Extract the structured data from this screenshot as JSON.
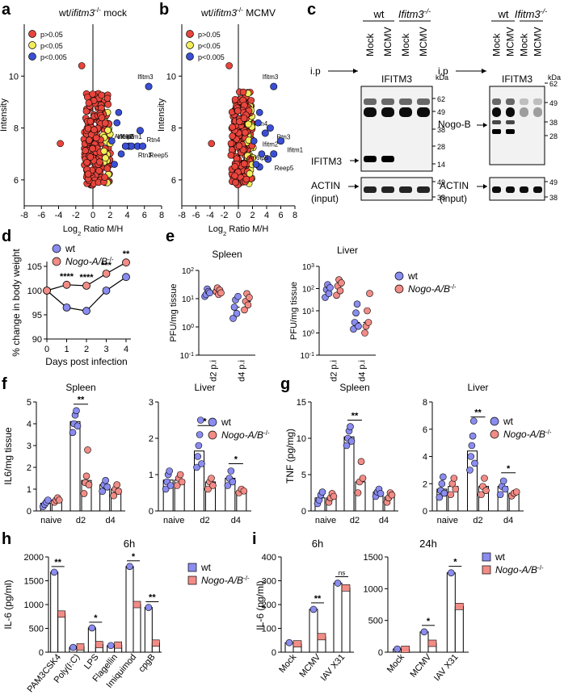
{
  "colors": {
    "red": "#e8453c",
    "yellow": "#f2ee5a",
    "blue": "#3a4fd6",
    "wt": "#8a8cf0",
    "ko": "#f28c86",
    "black": "#000000"
  },
  "panel_letters": {
    "a": "a",
    "b": "b",
    "c": "c",
    "d": "d",
    "e": "e",
    "f": "f",
    "g": "g",
    "h": "h",
    "i": "i"
  },
  "chart_data": [
    {
      "id": "a",
      "type": "scatter",
      "title": "wt/ifitm3-/- mock",
      "title_parts": {
        "pre": "wt/",
        "italic": "ifitm3",
        "sup": "-/-",
        "post": " mock"
      },
      "xlabel": "Log2 Ratio M/H",
      "xlabel_parts": {
        "pre": "Log",
        "sub": "2",
        "post": " Ratio M/H"
      },
      "ylabel": "Intensity",
      "xlim": [
        -8,
        8
      ],
      "ylim": [
        5,
        12
      ],
      "xticks": [
        -8,
        -6,
        -4,
        -2,
        0,
        2,
        4,
        6,
        8
      ],
      "yticks": [
        6,
        8,
        10
      ],
      "legend": [
        {
          "label": "p>0.05",
          "color": "red"
        },
        {
          "label": "p<0.05",
          "color": "yellow"
        },
        {
          "label": "p<0.005",
          "color": "blue"
        }
      ],
      "highlighted": [
        {
          "name": "Ifitm3",
          "x": 6.5,
          "y": 9.6
        },
        {
          "name": "Rtn4",
          "x": 5.5,
          "y": 7.9
        },
        {
          "name": "Ifitm2",
          "x": 4.2,
          "y": 7.3
        },
        {
          "name": "Rtn3",
          "x": 4.5,
          "y": 7.3
        },
        {
          "name": "Ifitm1",
          "x": 5.2,
          "y": 7.3
        },
        {
          "name": "Reep5",
          "x": 5.8,
          "y": 7.3
        },
        {
          "name": "Arl6ip5",
          "x": 3.8,
          "y": 7.3
        }
      ]
    },
    {
      "id": "b",
      "type": "scatter",
      "title": "wt/ifitm3-/- MCMV",
      "title_parts": {
        "pre": "wt/",
        "italic": "ifitm3",
        "sup": "-/-",
        "post": " MCMV"
      },
      "xlabel": "Log2 Ratio M/H",
      "xlabel_parts": {
        "pre": "Log",
        "sub": "2",
        "post": " Ratio M/H"
      },
      "ylabel": "Intensity",
      "xlim": [
        -8,
        8
      ],
      "ylim": [
        5,
        12
      ],
      "xticks": [
        -8,
        -6,
        -4,
        -2,
        0,
        2,
        4,
        6,
        8
      ],
      "yticks": [
        6,
        8,
        10
      ],
      "legend": [
        {
          "label": "p>0.05",
          "color": "red"
        },
        {
          "label": "p<0.05",
          "color": "yellow"
        },
        {
          "label": "p<0.005",
          "color": "blue"
        }
      ],
      "highlighted": [
        {
          "name": "Ifitm3",
          "x": 5.0,
          "y": 9.6
        },
        {
          "name": "Rtn3",
          "x": 4.5,
          "y": 8.0
        },
        {
          "name": "Rtn4",
          "x": 3.8,
          "y": 7.8
        },
        {
          "name": "Ifitm1",
          "x": 6.0,
          "y": 7.5
        },
        {
          "name": "Ifitm2",
          "x": 5.0,
          "y": 7.0
        },
        {
          "name": "Reep5",
          "x": 4.2,
          "y": 6.8
        },
        {
          "name": "Arl6ip5",
          "x": 3.0,
          "y": 6.5
        }
      ]
    },
    {
      "id": "c",
      "type": "blot",
      "left": {
        "group_wt": "wt",
        "group_ko": "Ifitm3-/-",
        "lanes": [
          "Mock",
          "MCMV",
          "Mock",
          "MCMV"
        ],
        "ip": "i.p",
        "ip_target": "IFITM3",
        "kda": "kDa",
        "markers": [
          "62",
          "49",
          "38",
          "28",
          "14"
        ],
        "band": "IFITM3",
        "loading": [
          "ACTIN",
          "(input)"
        ],
        "loading_markers": [
          "49",
          "38"
        ]
      },
      "right": {
        "group_wt": "wt",
        "group_ko": "Ifitm3-/-",
        "lanes": [
          "Mock",
          "MCMV",
          "Mock",
          "MCMV"
        ],
        "ip": "i.p",
        "ip_target": "IFITM3",
        "kda": "kDa",
        "markers": [
          "62",
          "49",
          "38",
          "28"
        ],
        "band": "Nogo-B",
        "loading": [
          "ACTIN",
          "(input)"
        ],
        "loading_markers": [
          "49",
          "38"
        ]
      }
    },
    {
      "id": "d",
      "type": "line",
      "xlabel": "Days post infection",
      "ylabel": "% change in body weight",
      "xlim": [
        0,
        4
      ],
      "ylim": [
        90,
        105
      ],
      "xticks": [
        0,
        1,
        2,
        3,
        4
      ],
      "yticks": [
        90,
        95,
        100,
        105
      ],
      "series": [
        {
          "name": "wt",
          "x": [
            0,
            1,
            2,
            3,
            4
          ],
          "values": [
            100,
            96.5,
            95.8,
            100.0,
            102.8
          ]
        },
        {
          "name": "Nogo-A/B-/-",
          "x": [
            0,
            1,
            2,
            3,
            4
          ],
          "values": [
            100,
            101.2,
            101.0,
            103.5,
            105.8
          ]
        }
      ],
      "annotations": [
        {
          "x": 1,
          "text": "****"
        },
        {
          "x": 2,
          "text": "****"
        },
        {
          "x": 3,
          "text": "***"
        },
        {
          "x": 4,
          "text": "**"
        }
      ],
      "legend": [
        {
          "label": "wt",
          "label_parts": {
            "pre": "wt",
            "sup": ""
          }
        },
        {
          "label": "Nogo-A/B-/-",
          "label_parts": {
            "pre": "Nogo-A/B",
            "sup": "-/-"
          }
        }
      ]
    },
    {
      "id": "e",
      "type": "dot",
      "ylabel": "PFU/mg tissue",
      "scale": "log",
      "legend": [
        {
          "label": "wt",
          "label_parts": {
            "pre": "wt",
            "sup": ""
          }
        },
        {
          "label": "Nogo-A/B-/-",
          "label_parts": {
            "pre": "Nogo-A/B",
            "sup": "-/-"
          }
        }
      ],
      "subplots": [
        {
          "title": "Spleen",
          "categories": [
            "d2 p.i",
            "d4 p.i"
          ],
          "ylim_exp": [
            -1,
            2
          ],
          "tick_labels": [
            "10-1",
            "100",
            "101",
            "102"
          ],
          "wt": [
            [
              12,
              14,
              22,
              18,
              16
            ],
            [
              2,
              5,
              9,
              3,
              12
            ]
          ],
          "ko": [
            [
              18,
              24,
              14,
              20,
              16
            ],
            [
              4,
              8,
              15,
              6,
              11
            ]
          ]
        },
        {
          "title": "Liver",
          "categories": [
            "d2 p.i",
            "d4 p.i"
          ],
          "ylim_exp": [
            -1,
            3
          ],
          "tick_labels": [
            "10-1",
            "100",
            "101",
            "102",
            "103"
          ],
          "wt": [
            [
              40,
              90,
              150,
              60,
              110
            ],
            [
              1.5,
              3,
              8,
              20,
              2
            ]
          ],
          "ko": [
            [
              50,
              130,
              250,
              80,
              180
            ],
            [
              1,
              2,
              10,
              3,
              60
            ]
          ]
        }
      ]
    },
    {
      "id": "f",
      "type": "bar+dot",
      "ylabel": "IL6/mg tissue",
      "legend": [
        {
          "label": "wt",
          "label_parts": {
            "pre": "wt",
            "sup": ""
          }
        },
        {
          "label": "Nogo-A/B-/-",
          "label_parts": {
            "pre": "Nogo-A/B",
            "sup": "-/-"
          }
        }
      ],
      "subplots": [
        {
          "title": "Spleen",
          "categories": [
            "naive",
            "d2",
            "d4"
          ],
          "ylim": [
            0,
            5
          ],
          "yticks": [
            0,
            1,
            2,
            3,
            4,
            5
          ],
          "wt": [
            0.35,
            4.1,
            1.2
          ],
          "ko": [
            0.5,
            1.4,
            1.0
          ],
          "wt_pts": [
            [
              0.2,
              0.3,
              0.4,
              0.5
            ],
            [
              3.6,
              4.0,
              4.4,
              4.6,
              3.9
            ],
            [
              0.9,
              1.2,
              1.4,
              1.1
            ]
          ],
          "ko_pts": [
            [
              0.4,
              0.5,
              0.6,
              0.5
            ],
            [
              0.8,
              1.3,
              1.6,
              2.8,
              1.2
            ],
            [
              0.7,
              1.0,
              1.2,
              0.9
            ]
          ],
          "sig": [
            {
              "cat": 1,
              "text": "**",
              "y": 4.9
            }
          ]
        },
        {
          "title": "Liver",
          "categories": [
            "naive",
            "d2",
            "d4"
          ],
          "ylim": [
            0,
            3
          ],
          "yticks": [
            0,
            1,
            2,
            3
          ],
          "wt": [
            0.85,
            1.65,
            0.9
          ],
          "ko": [
            0.85,
            0.8,
            0.55
          ],
          "wt_pts": [
            [
              0.6,
              0.8,
              1.0,
              1.1,
              0.7
            ],
            [
              1.2,
              1.5,
              1.8,
              2.1,
              2.5,
              1.3
            ],
            [
              0.7,
              0.9,
              1.1,
              0.8
            ]
          ],
          "ko_pts": [
            [
              0.7,
              0.9,
              1.0,
              0.8
            ],
            [
              0.6,
              0.8,
              0.9,
              0.7
            ],
            [
              0.5,
              0.6,
              0.55
            ]
          ],
          "sig": [
            {
              "cat": 1,
              "text": "*",
              "y": 2.35
            },
            {
              "cat": 2,
              "text": "*",
              "y": 1.3
            }
          ]
        }
      ]
    },
    {
      "id": "g",
      "type": "bar+dot",
      "ylabel": "TNF (pg/mg)",
      "legend": [
        {
          "label": "wt",
          "label_parts": {
            "pre": "wt",
            "sup": ""
          }
        },
        {
          "label": "Nogo-A/B-/-",
          "label_parts": {
            "pre": "Nogo-A/B",
            "sup": "-/-"
          }
        }
      ],
      "subplots": [
        {
          "title": "Spleen",
          "categories": [
            "naive",
            "d2",
            "d4"
          ],
          "ylim": [
            0,
            15
          ],
          "yticks": [
            0,
            5,
            10,
            15
          ],
          "wt": [
            1.8,
            10.2,
            2.6
          ],
          "ko": [
            1.8,
            4.0,
            1.9
          ],
          "wt_pts": [
            [
              1.0,
              1.5,
              2.2,
              2.6
            ],
            [
              9.0,
              10.0,
              11.0,
              11.6,
              9.6
            ],
            [
              2.0,
              2.6,
              3.0,
              2.4
            ]
          ],
          "ko_pts": [
            [
              1.2,
              1.8,
              2.4,
              2.0
            ],
            [
              2.5,
              4.0,
              6.8,
              4.5
            ],
            [
              1.2,
              1.8,
              2.5,
              2.2
            ]
          ],
          "sig": [
            {
              "cat": 1,
              "text": "**",
              "y": 12.5
            }
          ]
        },
        {
          "title": "Liver",
          "categories": [
            "naive",
            "d2",
            "d4"
          ],
          "ylim": [
            0,
            8
          ],
          "yticks": [
            0,
            2,
            4,
            6,
            8
          ],
          "wt": [
            1.6,
            4.4,
            1.8
          ],
          "ko": [
            1.8,
            1.8,
            1.3
          ],
          "wt_pts": [
            [
              1.0,
              1.5,
              2.0,
              2.5,
              1.3
            ],
            [
              3.0,
              4.0,
              4.8,
              5.5,
              6.6,
              3.5
            ],
            [
              1.2,
              1.8,
              2.2,
              1.6
            ]
          ],
          "ko_pts": [
            [
              1.2,
              2.0,
              2.4,
              1.6
            ],
            [
              1.2,
              1.8,
              2.4,
              1.5
            ],
            [
              1.1,
              1.3,
              1.4
            ]
          ],
          "sig": [
            {
              "cat": 1,
              "text": "**",
              "y": 6.9
            },
            {
              "cat": 2,
              "text": "*",
              "y": 2.8
            }
          ]
        }
      ]
    },
    {
      "id": "h",
      "type": "bar",
      "title": "6h",
      "ylabel": "IL-6 (pg/ml)",
      "ylim": [
        0,
        2000
      ],
      "yticks": [
        0,
        500,
        1000,
        1500,
        2000
      ],
      "categories": [
        "PAM3CSK4",
        "Poly(I:C)",
        "LPS",
        "Flagellin",
        "Imiquimod",
        "cpgB"
      ],
      "series": [
        {
          "name": "wt",
          "values": [
            1680,
            100,
            510,
            140,
            1800,
            940
          ]
        },
        {
          "name": "Nogo-A/B-/-",
          "values": [
            800,
            110,
            160,
            150,
            1000,
            190
          ]
        }
      ],
      "sig": [
        {
          "cat": 0,
          "text": "**"
        },
        {
          "cat": 2,
          "text": "*"
        },
        {
          "cat": 4,
          "text": "*"
        },
        {
          "cat": 5,
          "text": "**"
        }
      ],
      "legend": [
        {
          "label": "wt",
          "label_parts": {
            "pre": "wt",
            "sup": ""
          }
        },
        {
          "label": "Nogo-A/B-/-",
          "label_parts": {
            "pre": "Nogo-A/B",
            "sup": "-/-"
          }
        }
      ]
    },
    {
      "id": "i",
      "type": "bar",
      "ylabel": "IL-6 (pg/ml)",
      "legend": [
        {
          "label": "wt",
          "label_parts": {
            "pre": "wt",
            "sup": ""
          }
        },
        {
          "label": "Nogo-A/B-/-",
          "label_parts": {
            "pre": "Nogo-A/B",
            "sup": "-/-"
          }
        }
      ],
      "subplots": [
        {
          "title": "6h",
          "categories": [
            "Mock",
            "MCMV",
            "IAV X31"
          ],
          "ylim": [
            0,
            400
          ],
          "yticks": [
            0,
            100,
            200,
            300,
            400
          ],
          "series": [
            {
              "name": "wt",
              "values": [
                40,
                180,
                290
              ]
            },
            {
              "name": "Nogo-A/B-/-",
              "values": [
                35,
                65,
                270
              ]
            }
          ],
          "sig": [
            {
              "cat": 1,
              "text": "**"
            },
            {
              "cat": 2,
              "text": "ns"
            }
          ]
        },
        {
          "title": "24h",
          "categories": [
            "Mock",
            "MCMV",
            "IAV X31"
          ],
          "ylim": [
            0,
            1500
          ],
          "yticks": [
            0,
            500,
            1000,
            1500
          ],
          "series": [
            {
              "name": "wt",
              "values": [
                50,
                320,
                1250
              ]
            },
            {
              "name": "Nogo-A/B-/-",
              "values": [
                45,
                140,
                720
              ]
            }
          ],
          "sig": [
            {
              "cat": 1,
              "text": "*"
            },
            {
              "cat": 2,
              "text": "*"
            }
          ]
        }
      ]
    }
  ]
}
